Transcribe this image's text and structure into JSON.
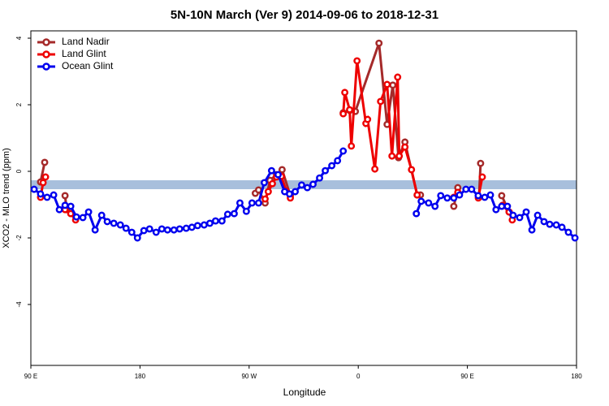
{
  "chart_data": {
    "type": "line",
    "title": "5N-10N March (Ver 9)   2014-09-06 to 2018-12-31",
    "x_label": "Longitude",
    "y_label": "XCO2 - MLO trend (ppm)",
    "xlim": [
      90,
      540
    ],
    "ylim": [
      -5.83,
      4.22
    ],
    "xticks": [
      {
        "value": 90,
        "label": "90 E"
      },
      {
        "value": 180,
        "label": "180"
      },
      {
        "value": 270,
        "label": "90 W"
      },
      {
        "value": 360,
        "label": "0"
      },
      {
        "value": 450,
        "label": "90 E"
      },
      {
        "value": 540,
        "label": "180"
      }
    ],
    "yticks": [
      -4,
      -2,
      0,
      2,
      4
    ],
    "legend": "top-left",
    "series": [
      {
        "name": "Land Nadir",
        "color": "#a52a2a",
        "x": [
          98.0,
          101.4,
          null,
          118.2,
          119.5,
          null,
          275.1,
          277.8,
          283.2,
          287.2,
          292.6,
          297.2,
          304.0,
          null,
          347.6,
          352.9,
          357.6,
          377.1,
          383.8,
          388.5,
          393.2,
          398.5,
          408.6,
          411.3,
          null,
          438.8,
          442.1,
          null,
          459.6,
          460.9,
          null,
          478.3,
          484.4
        ],
        "values": [
          -0.32,
          0.27,
          null,
          -0.73,
          -1.15,
          null,
          -0.66,
          -0.56,
          -0.95,
          -0.27,
          -0.1,
          0.05,
          -0.73,
          null,
          1.76,
          1.83,
          1.8,
          3.85,
          1.41,
          2.59,
          0.41,
          0.88,
          -0.71,
          -0.71,
          null,
          -1.05,
          -0.49,
          null,
          -0.78,
          0.24,
          null,
          -0.73,
          -1.22
        ]
      },
      {
        "name": "Land Glint",
        "color": "#ee0000",
        "x": [
          98.0,
          100.1,
          102.1,
          null,
          118.2,
          122.9,
          126.9,
          null,
          283.2,
          285.8,
          289.2,
          292.6,
          296.6,
          300.6,
          304.0,
          null,
          347.6,
          348.9,
          352.9,
          354.3,
          359.0,
          366.3,
          367.7,
          373.7,
          378.4,
          383.8,
          387.8,
          392.5,
          393.8,
          398.5,
          403.9,
          408.6,
          null,
          438.8,
          442.1,
          null,
          459.0,
          462.3,
          null,
          479.0,
          484.4,
          487.0
        ],
        "values": [
          -0.78,
          -0.34,
          -0.17,
          null,
          -1.15,
          -1.27,
          -1.46,
          null,
          -0.83,
          -0.61,
          -0.37,
          -0.17,
          -0.15,
          -0.59,
          -0.8,
          null,
          1.73,
          2.37,
          1.85,
          0.76,
          3.32,
          1.44,
          1.56,
          0.07,
          2.1,
          2.61,
          0.46,
          2.83,
          0.46,
          0.73,
          0.05,
          -0.71,
          null,
          -0.78,
          -0.63,
          null,
          -0.8,
          -0.17,
          null,
          -1.02,
          -1.22,
          -1.46
        ]
      },
      {
        "name": "Ocean Glint",
        "color": "#0000ee",
        "x": [
          92.7,
          98.0,
          103.4,
          108.8,
          113.5,
          118.2,
          122.9,
          127.6,
          132.9,
          137.6,
          143.0,
          148.4,
          153.0,
          158.4,
          163.8,
          168.5,
          173.2,
          177.9,
          183.2,
          187.9,
          193.3,
          198.0,
          202.7,
          208.0,
          212.7,
          218.1,
          222.8,
          227.5,
          232.9,
          237.6,
          242.3,
          247.6,
          252.3,
          257.7,
          262.4,
          267.7,
          272.4,
          277.8,
          282.5,
          288.5,
          293.9,
          299.3,
          303.3,
          308.0,
          313.3,
          318.0,
          322.7,
          328.1,
          332.8,
          338.2,
          342.9,
          347.6,
          null,
          407.9,
          411.9,
          418.0,
          423.3,
          428.0,
          433.4,
          438.8,
          443.5,
          448.8,
          453.5,
          458.9,
          464.3,
          469.0,
          473.6,
          478.3,
          483.0,
          487.7,
          493.1,
          498.5,
          503.2,
          507.9,
          513.2,
          517.9,
          523.3,
          528.0,
          533.3,
          538.7
        ],
        "values": [
          -0.54,
          -0.68,
          -0.78,
          -0.71,
          -1.15,
          -1.02,
          -1.05,
          -1.37,
          -1.39,
          -1.22,
          -1.76,
          -1.32,
          -1.51,
          -1.56,
          -1.61,
          -1.71,
          -1.83,
          -2.0,
          -1.78,
          -1.73,
          -1.83,
          -1.73,
          -1.76,
          -1.76,
          -1.73,
          -1.71,
          -1.68,
          -1.63,
          -1.61,
          -1.56,
          -1.49,
          -1.49,
          -1.29,
          -1.27,
          -0.95,
          -1.2,
          -0.95,
          -0.95,
          -0.34,
          0.02,
          -0.1,
          -0.61,
          -0.68,
          -0.61,
          -0.41,
          -0.49,
          -0.39,
          -0.2,
          0.02,
          0.17,
          0.32,
          0.61,
          null,
          -1.27,
          -0.9,
          -0.95,
          -1.05,
          -0.73,
          -0.8,
          -0.8,
          -0.71,
          -0.54,
          -0.54,
          -0.73,
          -0.78,
          -0.71,
          -1.15,
          -1.05,
          -1.05,
          -1.32,
          -1.39,
          -1.22,
          -1.76,
          -1.32,
          -1.51,
          -1.59,
          -1.61,
          -1.68,
          -1.83,
          -2.0
        ]
      }
    ]
  }
}
